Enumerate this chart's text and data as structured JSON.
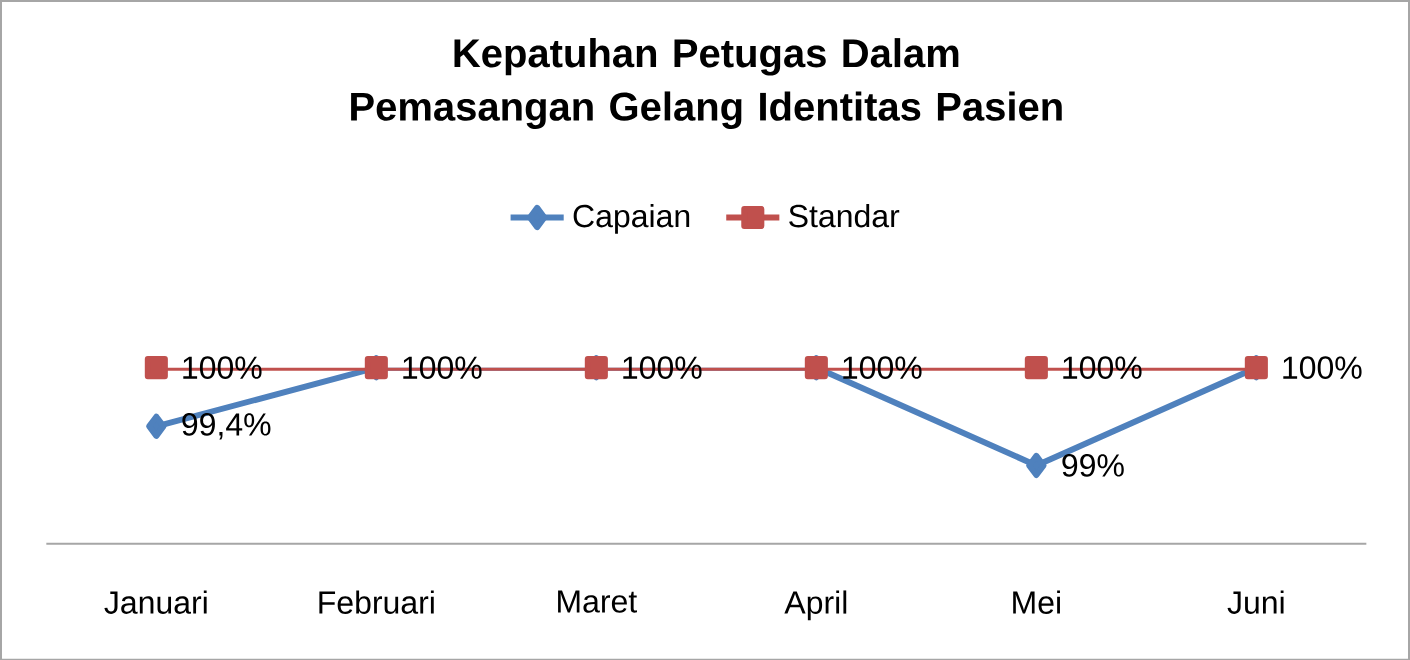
{
  "chart_data": {
    "type": "line",
    "title": "Kepatuhan Petugas Dalam Pemasangan Gelang Identitas Pasien",
    "categories": [
      "Januari",
      "Februari",
      "Maret",
      "April",
      "Mei",
      "Juni"
    ],
    "series": [
      {
        "name": "Capaian",
        "color": "#4f81bd",
        "marker": "diamond",
        "values": [
          99.4,
          100,
          100,
          100,
          99,
          100
        ],
        "value_labels": [
          "99,4%",
          "100%",
          "100%",
          "100%",
          "99%",
          "100%"
        ]
      },
      {
        "name": "Standar",
        "color": "#c0504d",
        "marker": "square",
        "values": [
          100,
          100,
          100,
          100,
          100,
          100
        ],
        "value_labels": [
          "100%",
          null,
          null,
          null,
          "100%",
          null
        ]
      }
    ],
    "legend": "top",
    "tick_labels": "x"
  }
}
